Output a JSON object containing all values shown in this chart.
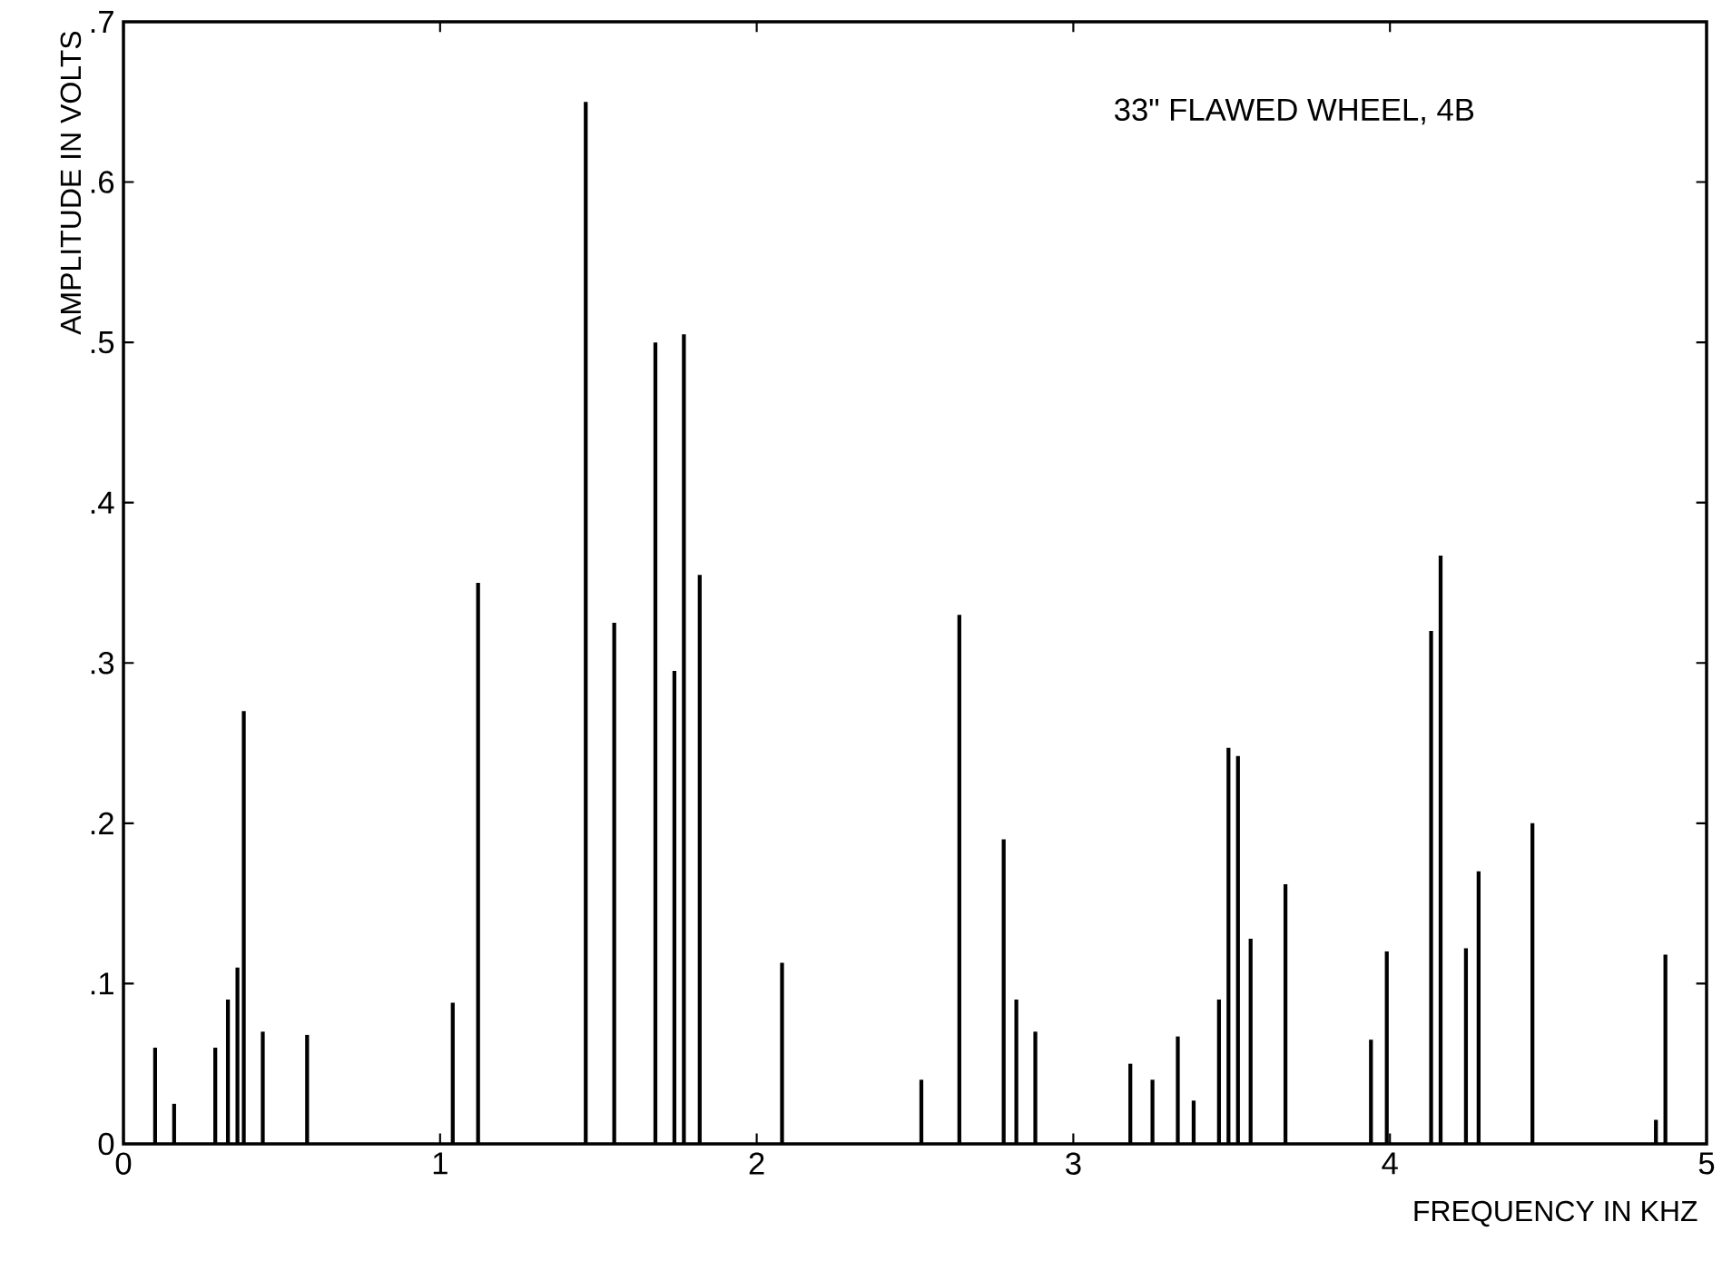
{
  "chart_data": {
    "type": "bar",
    "xlabel": "FREQUENCY IN KHZ",
    "ylabel": "AMPLITUDE IN VOLTS",
    "annotations": [
      "33\" FLAWED WHEEL, 4B"
    ],
    "x": [
      0.1,
      0.16,
      0.29,
      0.33,
      0.36,
      0.38,
      0.44,
      0.58,
      1.04,
      1.12,
      1.46,
      1.55,
      1.68,
      1.74,
      1.77,
      1.82,
      2.08,
      2.52,
      2.64,
      2.78,
      2.82,
      2.88,
      3.18,
      3.25,
      3.33,
      3.38,
      3.46,
      3.49,
      3.52,
      3.56,
      3.67,
      3.94,
      3.99,
      4.13,
      4.16,
      4.24,
      4.28,
      4.45,
      4.84,
      4.87
    ],
    "values": [
      0.06,
      0.025,
      0.06,
      0.09,
      0.11,
      0.27,
      0.07,
      0.068,
      0.088,
      0.35,
      0.65,
      0.325,
      0.5,
      0.295,
      0.505,
      0.355,
      0.113,
      0.04,
      0.33,
      0.19,
      0.09,
      0.07,
      0.05,
      0.04,
      0.067,
      0.027,
      0.09,
      0.247,
      0.242,
      0.128,
      0.162,
      0.065,
      0.12,
      0.32,
      0.367,
      0.122,
      0.17,
      0.2,
      0.015,
      0.118
    ],
    "color": "#000000",
    "xlim": [
      0,
      5
    ],
    "ylim": [
      0,
      0.7
    ],
    "xticks": [
      0,
      1,
      2,
      3,
      4,
      5
    ],
    "yticks": [
      0,
      {
        "value": 0.1,
        "label": ".1"
      },
      {
        "value": 0.2,
        "label": ".2"
      },
      {
        "value": 0.3,
        "label": ".3"
      },
      {
        "value": 0.4,
        "label": ".4"
      },
      {
        "value": 0.5,
        "label": ".5"
      },
      {
        "value": 0.6,
        "label": ".6"
      },
      {
        "value": 0.7,
        "label": ".7"
      }
    ],
    "grid": false
  }
}
